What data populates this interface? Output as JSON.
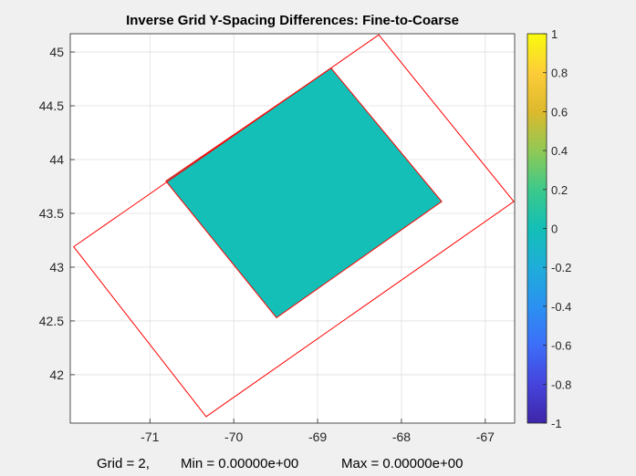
{
  "chart_data": {
    "type": "map",
    "title": "Inverse Grid Y-Spacing Differences: Fine-to-Coarse",
    "xlim": [
      -71.95,
      -66.65
    ],
    "ylim": [
      41.55,
      45.17
    ],
    "x_ticks": [
      -71,
      -70,
      -69,
      -68,
      -67
    ],
    "y_ticks": [
      42,
      42.5,
      43,
      43.5,
      44,
      44.5,
      45
    ],
    "grid": true,
    "colorbar": {
      "range": [
        -1,
        1
      ],
      "ticks": [
        -1,
        -0.8,
        -0.6,
        -0.4,
        -0.2,
        0,
        0.2,
        0.4,
        0.6,
        0.8,
        1
      ],
      "tick_labels": [
        "-1",
        "-0.8",
        "-0.6",
        "-0.4",
        "-0.2",
        "0",
        "0.2",
        "0.4",
        "0.6",
        "0.8",
        "1"
      ],
      "colormap": "parula",
      "placement": "right"
    },
    "outer_grid_boundary": {
      "color": "#ff0000",
      "vertices": [
        [
          -71.91,
          43.19
        ],
        [
          -68.27,
          45.16
        ],
        [
          -66.66,
          43.61
        ],
        [
          -70.33,
          41.61
        ]
      ]
    },
    "inner_grid_boundary": {
      "color": "#ff0000",
      "vertices": [
        [
          -70.81,
          43.8
        ],
        [
          -68.84,
          44.85
        ],
        [
          -67.52,
          43.61
        ],
        [
          -69.49,
          42.53
        ]
      ]
    },
    "filled_region": {
      "value": 0,
      "color": "#13bfb6",
      "vertices": [
        [
          -70.81,
          43.8
        ],
        [
          -68.84,
          44.85
        ],
        [
          -67.52,
          43.61
        ],
        [
          -69.49,
          42.53
        ]
      ]
    },
    "caption": {
      "grid_label": "Grid = 2,",
      "min_label": "Min = 0.00000e+00",
      "max_label": "Max = 0.00000e+00"
    }
  }
}
